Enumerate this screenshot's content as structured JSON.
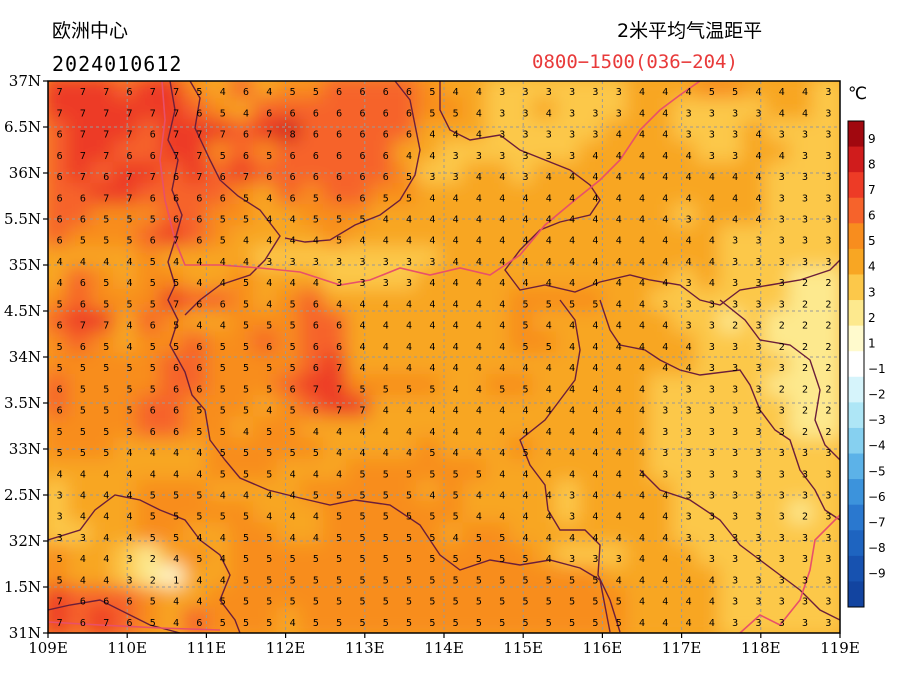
{
  "header": {
    "title_left": "欧洲中心",
    "date_code": "2024010612",
    "title_right": "2米平均气温距平",
    "time_range": "0800−1500(036−204)"
  },
  "axes": {
    "lat_labels": [
      "37N",
      "6.5N",
      "36N",
      "5.5N",
      "35N",
      "4.5N",
      "34N",
      "3.5N",
      "33N",
      "2.5N",
      "32N",
      "1.5N",
      "31N"
    ],
    "lon_labels": [
      "109E",
      "110E",
      "111E",
      "112E",
      "113E",
      "114E",
      "115E",
      "116E",
      "117E",
      "118E",
      "119E"
    ]
  },
  "colorbar": {
    "unit": "℃",
    "levels": [
      {
        "label": "9",
        "color": "#a1080f"
      },
      {
        "label": "8",
        "color": "#d01c1c"
      },
      {
        "label": "7",
        "color": "#ed3b26"
      },
      {
        "label": "6",
        "color": "#f6632b"
      },
      {
        "label": "5",
        "color": "#f88d1e"
      },
      {
        "label": "4",
        "color": "#f8a623"
      },
      {
        "label": "3",
        "color": "#fcc84a"
      },
      {
        "label": "2",
        "color": "#fde98e"
      },
      {
        "label": "1",
        "color": "#fffacd"
      },
      {
        "label": "−1",
        "color": "#ffffff"
      },
      {
        "label": "−2",
        "color": "#d6f4fb"
      },
      {
        "label": "−3",
        "color": "#aee6f6"
      },
      {
        "label": "−4",
        "color": "#86d0f0"
      },
      {
        "label": "−5",
        "color": "#5cb2e8"
      },
      {
        "label": "−6",
        "color": "#3c93dc"
      },
      {
        "label": "−7",
        "color": "#2a78cf"
      },
      {
        "label": "−8",
        "color": "#1e64c0"
      },
      {
        "label": "−9",
        "color": "#1752b0"
      },
      {
        "label": "",
        "color": "#1244a0"
      }
    ]
  },
  "grid_values": [
    "7776775464556666544333333444554443",
    "7777776546666666554334333443333443",
    "6777677767866666444333334443334333",
    "6776677565666664433333344444334433",
    "6767767676666665334434444444444333",
    "6677666654656655444444444444444333",
    "6655566554455544444444444443444333",
    "6555676544445444444444444444433333",
    "4444544443333333344444444444433333",
    "4654554454443333444444444443433322",
    "5655576654564444444455554433333322",
    "6774654455566444444454444443323222",
    "5654556556566444444455444444333222",
    "5555566555567444444444444444333322",
    "6555566555677555544554444433333222",
    "6555665554567744444444444433333322",
    "5555665545544444444444444433333322",
    "5554444555554444544454444433333333",
    "4444444555444555555444444433333333",
    "3444555444455555454444344443333333",
    "3444555554445555554444344443333323",
    "3344554455445555545544444443333333",
    "5443245455555555555554333444333333",
    "5443214455555555555555554444433333",
    "7666544555555555555555555444433333",
    "7676546555455555555555555444433333"
  ]
}
